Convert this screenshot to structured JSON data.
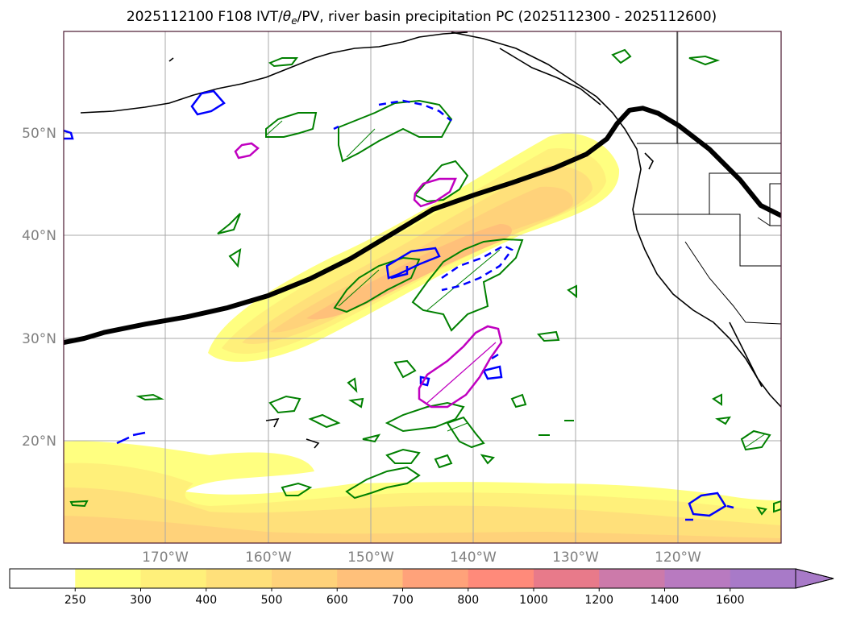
{
  "chart_data": {
    "type": "map",
    "title": "2025112100 F108 IVT/θe/PV, river basin precipitation PC (2025112300 - 2025112600)",
    "title_parts": {
      "prefix": "2025112100 F108 IVT/",
      "theta": "θ",
      "theta_sub": "e",
      "suffix": "/PV, river basin precipitation PC (2025112300 - 2025112600)"
    },
    "lon_range": [
      -180,
      -110
    ],
    "lat_range": [
      10,
      60
    ],
    "lon_ticks": [
      {
        "lon": -170,
        "label": "170°W"
      },
      {
        "lon": -160,
        "label": "160°W"
      },
      {
        "lon": -150,
        "label": "150°W"
      },
      {
        "lon": -140,
        "label": "140°W"
      },
      {
        "lon": -130,
        "label": "130°W"
      },
      {
        "lon": -120,
        "label": "120°W"
      }
    ],
    "lat_ticks": [
      {
        "lat": 20,
        "label": "20°N"
      },
      {
        "lat": 30,
        "label": "30°N"
      },
      {
        "lat": 40,
        "label": "40°N"
      },
      {
        "lat": 50,
        "label": "50°N"
      }
    ],
    "grid": true,
    "ivt_colorbar": {
      "levels": [
        "250",
        "300",
        "400",
        "500",
        "600",
        "700",
        "800",
        "1000",
        "1200",
        "1400",
        "1600"
      ],
      "colors": [
        "#ffffff",
        "#ffff80",
        "#fff07a",
        "#ffe07a",
        "#ffd27a",
        "#ffc07a",
        "#ffa27a",
        "#ff8a7a",
        "#e87a8a",
        "#cc7aaa",
        "#b87ac0",
        "#a87ac8"
      ],
      "extend": "max"
    },
    "theta_e_contour": [
      [
        -180,
        29.6
      ],
      [
        -178,
        30.0
      ],
      [
        -176,
        30.6
      ],
      [
        -172,
        31.4
      ],
      [
        -168,
        32.1
      ],
      [
        -164,
        33.0
      ],
      [
        -160,
        34.2
      ],
      [
        -156,
        35.8
      ],
      [
        -152,
        37.8
      ],
      [
        -150,
        39.0
      ],
      [
        -148,
        40.2
      ],
      [
        -146,
        41.4
      ],
      [
        -144,
        42.6
      ],
      [
        -140,
        44.0
      ],
      [
        -136,
        45.3
      ],
      [
        -132,
        46.7
      ],
      [
        -129,
        48.0
      ],
      [
        -127,
        49.5
      ],
      [
        -126,
        51.0
      ],
      [
        -124.8,
        52.3
      ],
      [
        -123.5,
        52.5
      ],
      [
        -122,
        52.0
      ],
      [
        -120,
        50.8
      ],
      [
        -117,
        48.5
      ],
      [
        -114,
        45.5
      ],
      [
        -112,
        43.0
      ],
      [
        -110,
        42.0
      ]
    ]
  }
}
